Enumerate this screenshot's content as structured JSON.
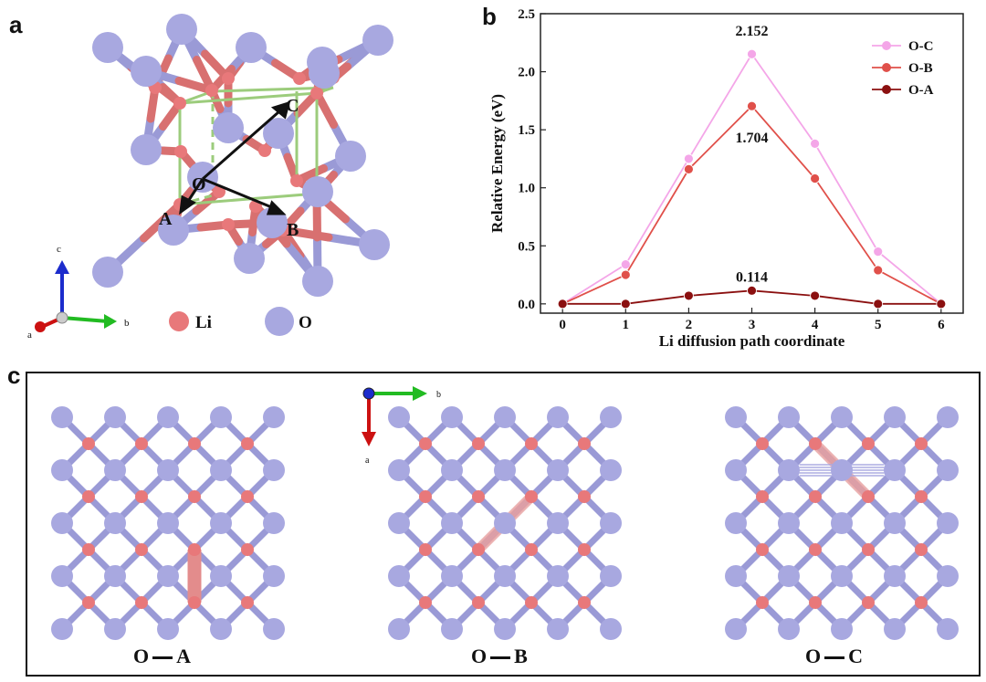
{
  "panels": {
    "a": {
      "label": "a",
      "points": {
        "A": "A",
        "B": "B",
        "C": "C",
        "O": "O"
      },
      "axes": {
        "a": "a",
        "b": "b",
        "c": "c"
      },
      "legend": [
        {
          "label": "Li",
          "color": "#e8787a"
        },
        {
          "label": "O",
          "color": "#a8a8e0"
        }
      ]
    },
    "b": {
      "label": "b"
    },
    "c": {
      "label": "c",
      "axes": {
        "a": "a",
        "b": "b"
      },
      "paths": [
        {
          "left": "O",
          "right": "A"
        },
        {
          "left": "O",
          "right": "B"
        },
        {
          "left": "O",
          "right": "C"
        }
      ]
    }
  },
  "colors": {
    "li": "#e8787a",
    "o": "#a8a8e0",
    "bond_li": "#d87070",
    "bond_o": "#9a9ad6",
    "cell": "#9ccc7c"
  },
  "chart_data": {
    "type": "line",
    "xlabel": "Li diffusion path coordinate",
    "ylabel": "Relative Energy (eV)",
    "x": [
      0,
      1,
      2,
      3,
      4,
      5,
      6
    ],
    "xticks": [
      "0",
      "1",
      "2",
      "3",
      "4",
      "5",
      "6"
    ],
    "yticks": [
      "0.0",
      "0.5",
      "1.0",
      "1.5",
      "2.0",
      "2.5"
    ],
    "xlim": [
      -0.35,
      6.35
    ],
    "ylim": [
      -0.08,
      2.5
    ],
    "legend_position": "top-right",
    "series": [
      {
        "name": "O-C",
        "color": "#f4a6e8",
        "values": [
          0.0,
          0.34,
          1.25,
          2.152,
          1.38,
          0.45,
          0.0
        ]
      },
      {
        "name": "O-B",
        "color": "#e0504a",
        "values": [
          0.0,
          0.25,
          1.16,
          1.704,
          1.08,
          0.29,
          0.0
        ]
      },
      {
        "name": "O-A",
        "color": "#8b1010",
        "values": [
          0.0,
          0.0,
          0.07,
          0.114,
          0.07,
          0.0,
          0.0
        ]
      }
    ],
    "annotations": [
      {
        "text": "2.152",
        "x": 3,
        "y": 2.152
      },
      {
        "text": "1.704",
        "x": 3,
        "y": 1.704
      },
      {
        "text": "0.114",
        "x": 3,
        "y": 0.114
      }
    ]
  }
}
